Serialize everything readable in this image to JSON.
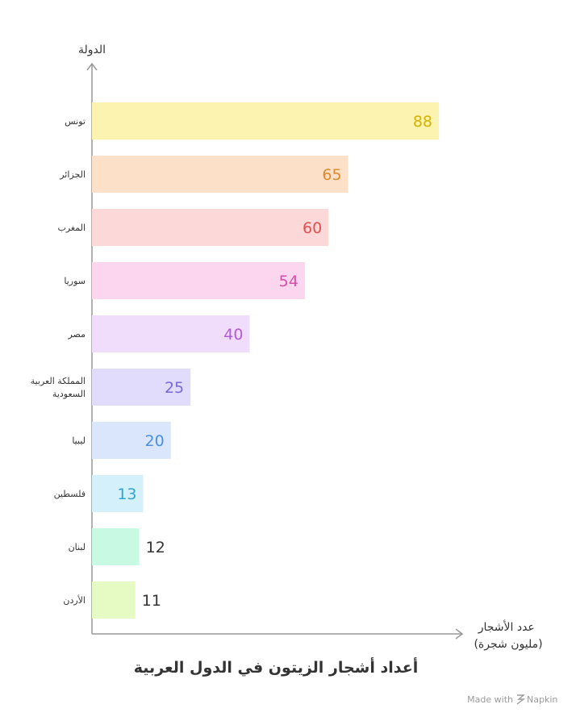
{
  "chart_data": {
    "type": "bar",
    "orientation": "horizontal",
    "title": "أعداد أشجار الزيتون في الدول العربية",
    "ylabel": "الدولة",
    "xlabel_line1": "عدد الأشجار",
    "xlabel_line2": "(مليون شجرة)",
    "xlim": [
      0,
      100
    ],
    "grid": false,
    "categories": [
      [
        "تونس"
      ],
      [
        "الجزائر"
      ],
      [
        "المغرب"
      ],
      [
        "سوريا"
      ],
      [
        "مصر"
      ],
      [
        "المملكة العربية",
        "السعودية"
      ],
      [
        "ليبيا"
      ],
      [
        "فلسطين"
      ],
      [
        "لبنان"
      ],
      [
        "الأردن"
      ]
    ],
    "values": [
      88,
      65,
      60,
      54,
      40,
      25,
      20,
      13,
      12,
      11
    ],
    "bar_colors": [
      "#fdf3b0",
      "#fde0c8",
      "#fdd8d8",
      "#fbd6ee",
      "#f0dcfb",
      "#e1dcfb",
      "#d9e6fb",
      "#d4f1fb",
      "#c8f9e3",
      "#e6fbc4"
    ],
    "label_colors": [
      "#d4b200",
      "#e08a2e",
      "#e05050",
      "#d84ca8",
      "#b45ad8",
      "#7a68d8",
      "#4a90e2",
      "#2fa6d0",
      "#333333",
      "#333333"
    ]
  },
  "footer": {
    "made_with": "Made with",
    "brand": "Napkin",
    "logo_icon": "napkin-logo-icon"
  }
}
